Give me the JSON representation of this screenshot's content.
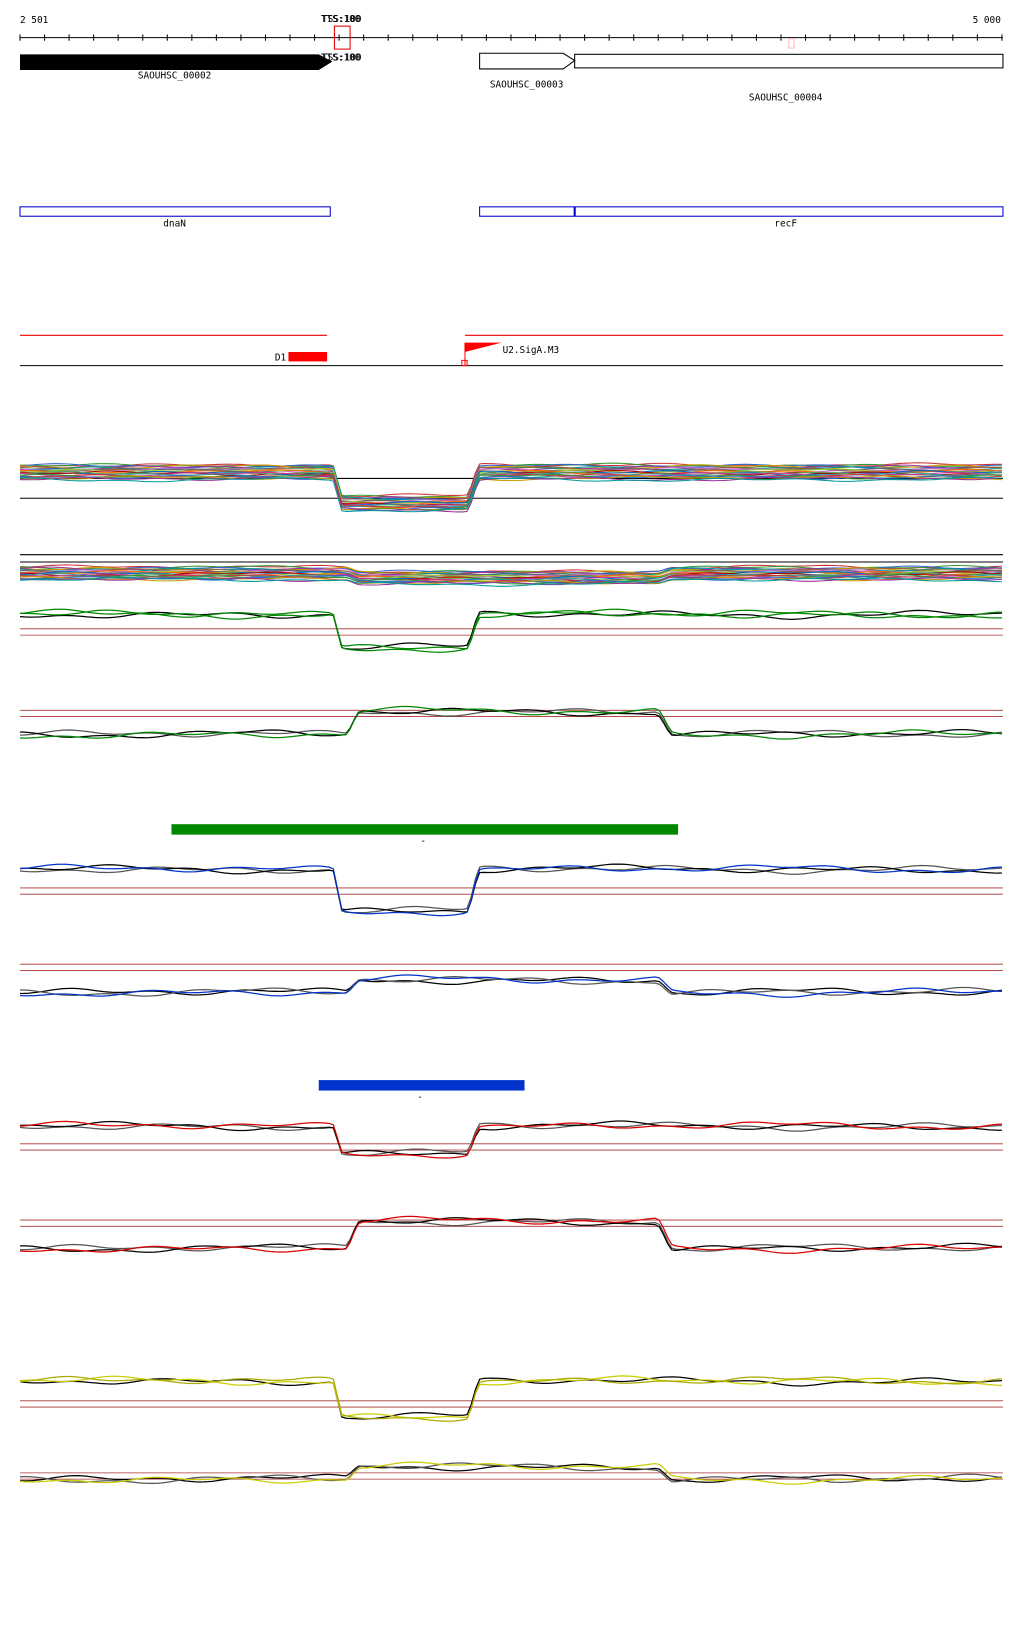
{
  "ruler": {
    "start": "2 501",
    "end": "5 000"
  },
  "tss": {
    "top_a": "TSS:100",
    "top_b": "TTS:100",
    "bottom_a": "TSS:100",
    "bottom_b": "TTS:100"
  },
  "genes": [
    "SAOUHSC_00002",
    "SAOUHSC_00003",
    "SAOUHSC_00004"
  ],
  "gene_names": [
    "dnaN",
    "recF"
  ],
  "regulatory": [
    "D1",
    "U2.SigA.M3"
  ],
  "track_markers": [
    "-",
    "-"
  ]
}
